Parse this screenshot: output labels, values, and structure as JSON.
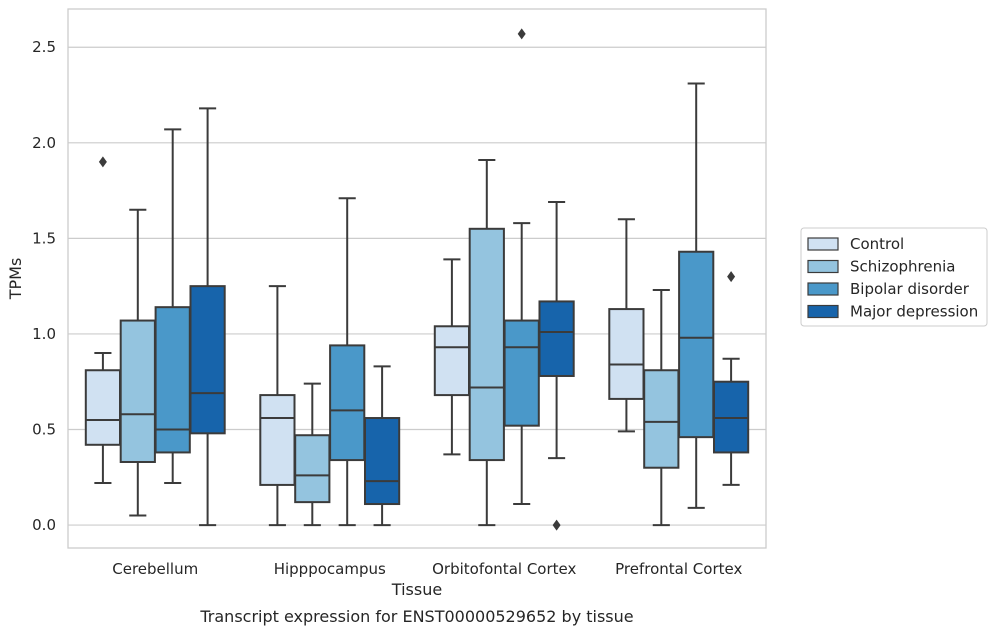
{
  "caption": "Transcript expression for ENST00000529652 by tissue",
  "chart_data": {
    "type": "box",
    "title": "",
    "xlabel": "Tissue",
    "ylabel": "TPMs",
    "ylim": [
      -0.12,
      2.7
    ],
    "yticks": [
      0.0,
      0.5,
      1.0,
      1.5,
      2.0,
      2.5
    ],
    "ytick_labels": [
      "0.0",
      "0.5",
      "1.0",
      "1.5",
      "2.0",
      "2.5"
    ],
    "grid": "horizontal",
    "legend_position": "right",
    "categories": [
      "Cerebellum",
      "Hipppocampus",
      "Orbitofontal Cortex",
      "Prefrontal Cortex"
    ],
    "series": [
      {
        "name": "Control",
        "color": "#d0e1f2",
        "boxes": [
          {
            "whislo": 0.22,
            "q1": 0.42,
            "med": 0.55,
            "q3": 0.81,
            "whishi": 0.9,
            "fliers": [
              1.9
            ]
          },
          {
            "whislo": 0.0,
            "q1": 0.21,
            "med": 0.56,
            "q3": 0.68,
            "whishi": 1.25,
            "fliers": []
          },
          {
            "whislo": 0.37,
            "q1": 0.68,
            "med": 0.93,
            "q3": 1.04,
            "whishi": 1.39,
            "fliers": []
          },
          {
            "whislo": 0.49,
            "q1": 0.66,
            "med": 0.84,
            "q3": 1.13,
            "whishi": 1.6,
            "fliers": []
          }
        ]
      },
      {
        "name": "Schizophrenia",
        "color": "#94c4df",
        "boxes": [
          {
            "whislo": 0.05,
            "q1": 0.33,
            "med": 0.58,
            "q3": 1.07,
            "whishi": 1.65,
            "fliers": []
          },
          {
            "whislo": 0.0,
            "q1": 0.12,
            "med": 0.26,
            "q3": 0.47,
            "whishi": 0.74,
            "fliers": []
          },
          {
            "whislo": 0.0,
            "q1": 0.34,
            "med": 0.72,
            "q3": 1.55,
            "whishi": 1.91,
            "fliers": []
          },
          {
            "whislo": 0.0,
            "q1": 0.3,
            "med": 0.54,
            "q3": 0.81,
            "whishi": 1.23,
            "fliers": []
          }
        ]
      },
      {
        "name": "Bipolar disorder",
        "color": "#4a98c9",
        "boxes": [
          {
            "whislo": 0.22,
            "q1": 0.38,
            "med": 0.5,
            "q3": 1.14,
            "whishi": 2.07,
            "fliers": []
          },
          {
            "whislo": 0.0,
            "q1": 0.34,
            "med": 0.6,
            "q3": 0.94,
            "whishi": 1.71,
            "fliers": []
          },
          {
            "whislo": 0.11,
            "q1": 0.52,
            "med": 0.93,
            "q3": 1.07,
            "whishi": 1.58,
            "fliers": [
              2.57
            ]
          },
          {
            "whislo": 0.09,
            "q1": 0.46,
            "med": 0.98,
            "q3": 1.43,
            "whishi": 2.31,
            "fliers": []
          }
        ]
      },
      {
        "name": "Major depression",
        "color": "#1764ab",
        "boxes": [
          {
            "whislo": 0.0,
            "q1": 0.48,
            "med": 0.69,
            "q3": 1.25,
            "whishi": 2.18,
            "fliers": []
          },
          {
            "whislo": 0.0,
            "q1": 0.11,
            "med": 0.23,
            "q3": 0.56,
            "whishi": 0.83,
            "fliers": []
          },
          {
            "whislo": 0.35,
            "q1": 0.78,
            "med": 1.01,
            "q3": 1.17,
            "whishi": 1.69,
            "fliers": [
              0.0
            ]
          },
          {
            "whislo": 0.21,
            "q1": 0.38,
            "med": 0.56,
            "q3": 0.75,
            "whishi": 0.87,
            "fliers": [
              1.3
            ]
          }
        ]
      }
    ]
  }
}
